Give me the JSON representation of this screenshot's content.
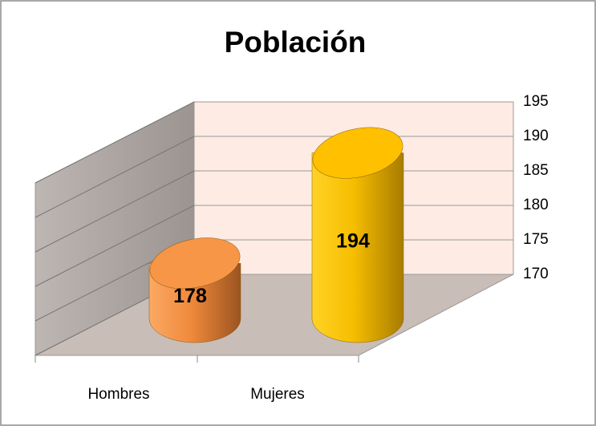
{
  "chart_data": {
    "type": "bar",
    "title": "Población",
    "categories": [
      "Hombres",
      "Mujeres"
    ],
    "values": [
      178,
      194
    ],
    "colors": [
      "#f79646",
      "#ffc000"
    ],
    "ylim": [
      170,
      195
    ],
    "yticks": [
      170,
      175,
      180,
      185,
      190,
      195
    ],
    "grid": true
  }
}
